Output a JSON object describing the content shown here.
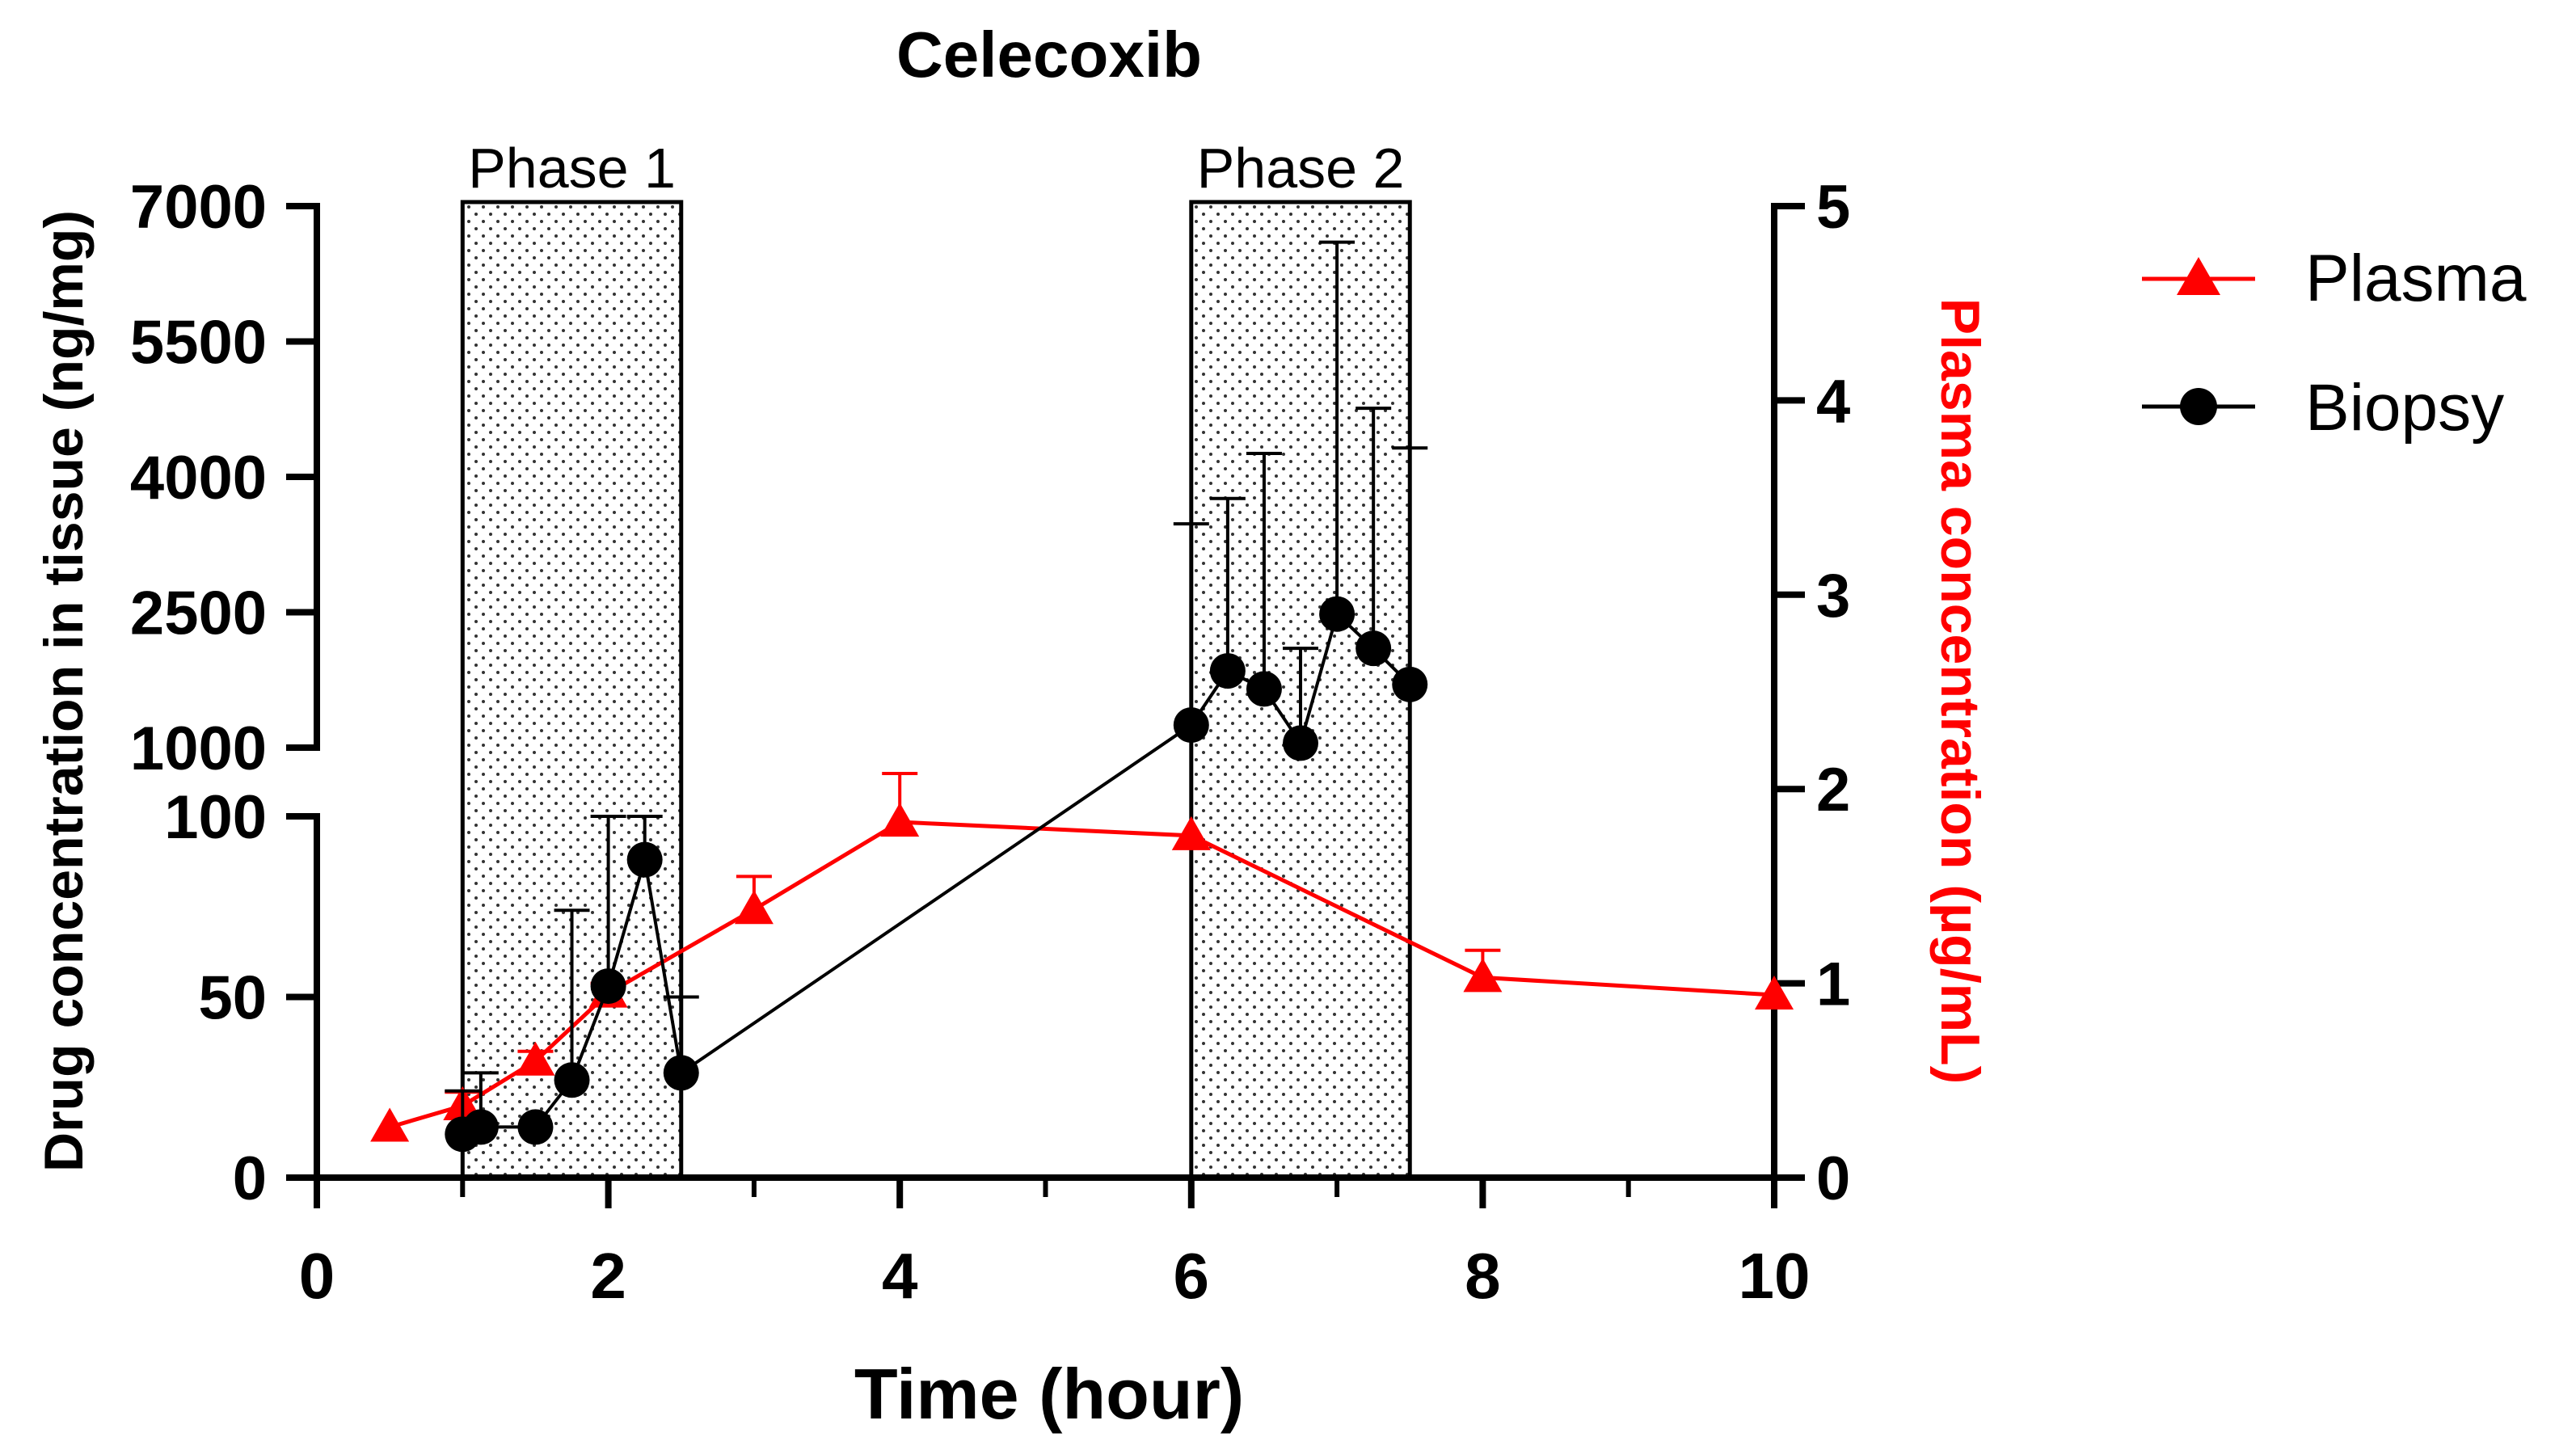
{
  "chart_data": {
    "type": "line",
    "title": "Celecoxib",
    "xlabel": "Time (hour)",
    "ylabel_left": "Drug concentration in tissue (ng/mg)",
    "ylabel_right": "Plasma concentration (µg/mL)",
    "xlim": [
      0,
      10
    ],
    "x_ticks": [
      0,
      2,
      4,
      6,
      8,
      10
    ],
    "y_left_lower": {
      "range": [
        0,
        100
      ],
      "ticks": [
        0,
        50,
        100
      ]
    },
    "y_left_upper": {
      "range": [
        1000,
        7000
      ],
      "ticks": [
        1000,
        2500,
        4000,
        5500,
        7000
      ]
    },
    "y_right": {
      "range": [
        0,
        5
      ],
      "ticks": [
        0,
        1,
        2,
        3,
        4,
        5
      ]
    },
    "colors": {
      "plasma": "#ff0000",
      "biopsy": "#000000"
    },
    "phases": [
      {
        "label": "Phase 1",
        "start": 1.0,
        "end": 2.5
      },
      {
        "label": "Phase 2",
        "start": 6.0,
        "end": 7.5
      }
    ],
    "series": [
      {
        "name": "Plasma",
        "axis": "right",
        "marker": "triangle",
        "x": [
          0.5,
          1.0,
          1.5,
          2.0,
          3.0,
          4.0,
          6.0,
          8.0,
          10.0
        ],
        "values": [
          0.26,
          0.37,
          0.6,
          0.95,
          1.38,
          1.83,
          1.76,
          1.03,
          0.94
        ],
        "err_upper": [
          0.26,
          0.44,
          0.65,
          1.0,
          1.55,
          2.08,
          1.76,
          1.17,
          0.94
        ]
      },
      {
        "name": "Biopsy",
        "axis": "left",
        "marker": "circle",
        "x": [
          1.0,
          1.125,
          1.5,
          1.75,
          2.0,
          2.25,
          2.5,
          6.0,
          6.25,
          6.5,
          6.75,
          7.0,
          7.25,
          7.5
        ],
        "values": [
          12,
          14,
          14,
          27,
          53,
          88,
          29,
          1250,
          1850,
          1650,
          1050,
          2480,
          2100,
          1700
        ],
        "err_upper": [
          24,
          29,
          14,
          74,
          100,
          100,
          50,
          3480,
          3760,
          4260,
          2100,
          6600,
          4760,
          4320
        ]
      }
    ]
  }
}
